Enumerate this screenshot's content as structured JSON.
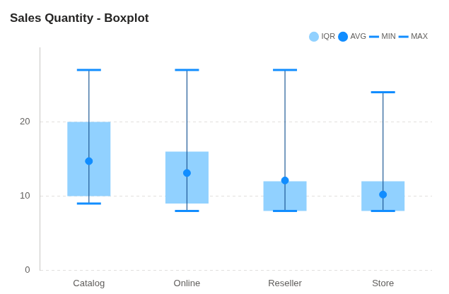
{
  "chart_data": {
    "type": "boxplot",
    "title": "Sales Quantity - Boxplot",
    "categories": [
      "Catalog",
      "Online",
      "Reseller",
      "Store"
    ],
    "series": [
      {
        "name": "IQR",
        "type": "bar",
        "color": "#91d1ff",
        "values": [
          [
            10,
            20
          ],
          [
            9,
            16
          ],
          [
            8,
            12
          ],
          [
            8,
            12
          ]
        ]
      },
      {
        "name": "AVG",
        "type": "scatter",
        "marker": "circle",
        "color": "#118dff",
        "values": [
          14.7,
          13.1,
          12.1,
          10.2
        ]
      },
      {
        "name": "MIN",
        "type": "scatter",
        "marker": "line",
        "color": "#118dff",
        "values": [
          9,
          8,
          8,
          8
        ]
      },
      {
        "name": "MAX",
        "type": "scatter",
        "marker": "line",
        "color": "#118dff",
        "values": [
          27,
          27,
          27,
          24
        ]
      }
    ],
    "ylim": [
      0,
      30
    ],
    "yticks": [
      0,
      10,
      20
    ],
    "grid": true,
    "legend": "top-right"
  }
}
